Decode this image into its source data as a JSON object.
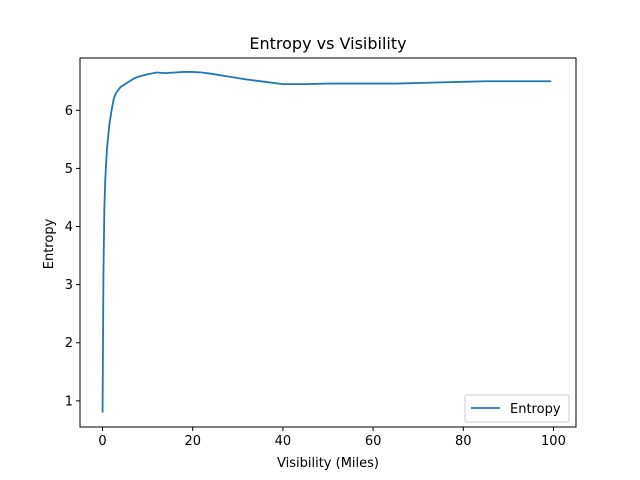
{
  "chart_data": {
    "type": "line",
    "title": "Entropy vs Visibility",
    "xlabel": "Visibility (Miles)",
    "ylabel": "Entropy",
    "xlim": [
      -5,
      105
    ],
    "ylim": [
      0.55,
      6.9
    ],
    "xticks": [
      0,
      20,
      40,
      60,
      80,
      100
    ],
    "yticks": [
      1,
      2,
      3,
      4,
      5,
      6
    ],
    "grid": false,
    "legend_position": "lower-right",
    "series": [
      {
        "name": "Entropy",
        "color": "#1f77b4",
        "x": [
          0,
          0.2,
          0.4,
          0.6,
          0.8,
          1,
          1.5,
          2,
          2.5,
          3,
          4,
          5,
          6,
          7,
          8,
          10,
          12,
          14,
          16,
          18,
          20,
          22,
          24,
          28,
          32,
          36,
          40,
          45,
          50,
          55,
          60,
          65,
          70,
          75,
          80,
          85,
          90,
          95,
          99.5
        ],
        "y": [
          0.8,
          3.2,
          4.3,
          4.8,
          5.1,
          5.35,
          5.75,
          6.0,
          6.2,
          6.3,
          6.4,
          6.45,
          6.5,
          6.55,
          6.58,
          6.62,
          6.65,
          6.64,
          6.65,
          6.66,
          6.66,
          6.65,
          6.63,
          6.58,
          6.53,
          6.49,
          6.45,
          6.45,
          6.46,
          6.46,
          6.46,
          6.46,
          6.47,
          6.48,
          6.49,
          6.5,
          6.5,
          6.5,
          6.5
        ]
      }
    ]
  }
}
